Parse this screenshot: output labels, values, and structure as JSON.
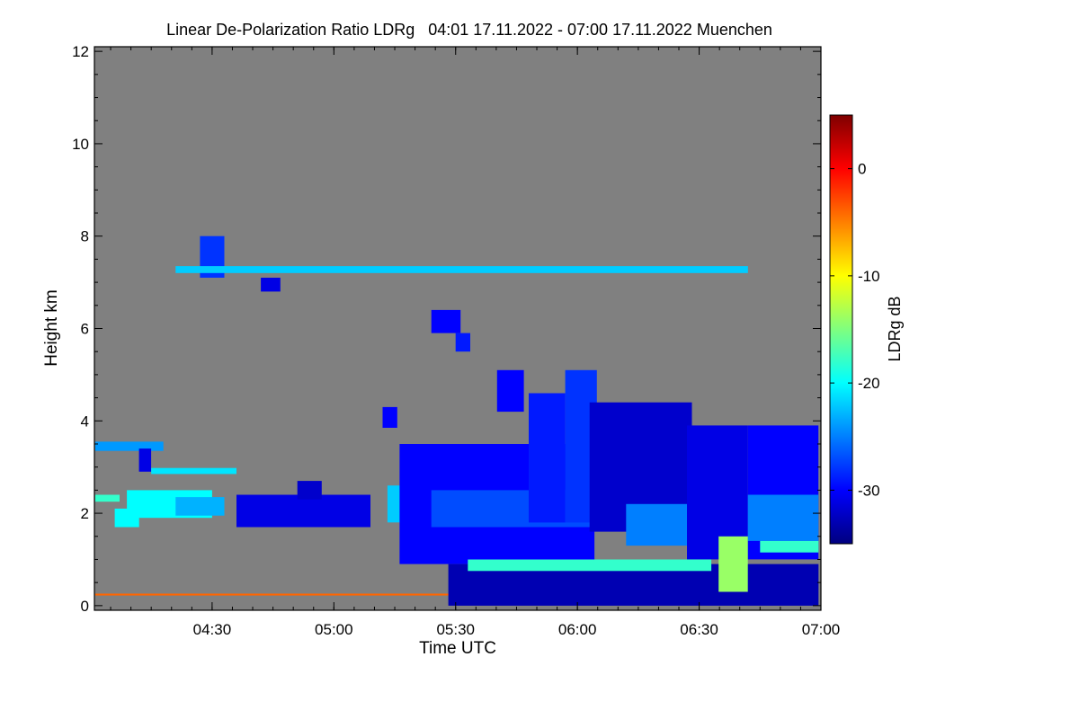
{
  "chart_data": {
    "type": "heatmap",
    "title": "Linear De-Polarization Ratio LDRg   04:01 17.11.2022 - 07:00 17.11.2022 Muenchen",
    "xlabel": "Time UTC",
    "ylabel": "Height km",
    "x_range_utc": [
      "04:01",
      "07:00"
    ],
    "xlim_hours": [
      4.0167,
      7.0
    ],
    "x_ticks": [
      {
        "label": "04:30",
        "value": 4.5
      },
      {
        "label": "05:00",
        "value": 5.0
      },
      {
        "label": "05:30",
        "value": 5.5
      },
      {
        "label": "06:00",
        "value": 6.0
      },
      {
        "label": "06:30",
        "value": 6.5
      },
      {
        "label": "07:00",
        "value": 7.0
      }
    ],
    "ylim": [
      -0.1,
      12.1
    ],
    "y_ticks": [
      0,
      2,
      4,
      6,
      8,
      10,
      12
    ],
    "colorbar": {
      "label": "LDRg dB",
      "range": [
        -35,
        5
      ],
      "ticks": [
        0,
        -10,
        -20,
        -30
      ],
      "colormap": [
        "#00007f",
        "#0000ff",
        "#007fff",
        "#00ffff",
        "#7fff7f",
        "#ffff00",
        "#ff7f00",
        "#ff0000",
        "#7f0000"
      ]
    },
    "no_data_color": "#808080",
    "regions": [
      {
        "t0": 4.02,
        "t1": 4.3,
        "h0": 3.35,
        "h1": 3.55,
        "ldr": -24
      },
      {
        "t0": 4.2,
        "t1": 4.25,
        "h0": 2.9,
        "h1": 3.4,
        "ldr": -31
      },
      {
        "t0": 4.25,
        "t1": 4.6,
        "h0": 2.85,
        "h1": 2.98,
        "ldr": -21
      },
      {
        "t0": 4.02,
        "t1": 4.12,
        "h0": 2.25,
        "h1": 2.4,
        "ldr": -18
      },
      {
        "t0": 4.1,
        "t1": 4.2,
        "h0": 1.7,
        "h1": 2.1,
        "ldr": -20
      },
      {
        "t0": 4.15,
        "t1": 4.5,
        "h0": 1.9,
        "h1": 2.5,
        "ldr": -20
      },
      {
        "t0": 4.35,
        "t1": 4.55,
        "h0": 1.95,
        "h1": 2.35,
        "ldr": -23
      },
      {
        "t0": 4.6,
        "t1": 5.15,
        "h0": 1.7,
        "h1": 2.4,
        "ldr": -31
      },
      {
        "t0": 4.85,
        "t1": 4.95,
        "h0": 2.3,
        "h1": 2.7,
        "ldr": -32
      },
      {
        "t0": 4.02,
        "t1": 5.52,
        "h0": 0.22,
        "h1": 0.26,
        "ldr": -4
      },
      {
        "t0": 4.45,
        "t1": 4.55,
        "h0": 7.1,
        "h1": 8.0,
        "ldr": -28
      },
      {
        "t0": 4.7,
        "t1": 4.78,
        "h0": 6.8,
        "h1": 7.1,
        "ldr": -31
      },
      {
        "t0": 4.35,
        "t1": 6.7,
        "h0": 7.2,
        "h1": 7.35,
        "ldr": -22
      },
      {
        "t0": 5.2,
        "t1": 5.26,
        "h0": 3.85,
        "h1": 4.3,
        "ldr": -30
      },
      {
        "t0": 5.4,
        "t1": 5.52,
        "h0": 5.9,
        "h1": 6.4,
        "ldr": -30
      },
      {
        "t0": 5.5,
        "t1": 5.56,
        "h0": 5.5,
        "h1": 5.9,
        "ldr": -29
      },
      {
        "t0": 5.22,
        "t1": 5.3,
        "h0": 1.8,
        "h1": 2.6,
        "ldr": -22
      },
      {
        "t0": 5.27,
        "t1": 6.07,
        "h0": 0.9,
        "h1": 3.5,
        "ldr": -30
      },
      {
        "t0": 5.4,
        "t1": 6.1,
        "h0": 1.7,
        "h1": 2.5,
        "ldr": -27
      },
      {
        "t0": 5.67,
        "t1": 5.78,
        "h0": 4.2,
        "h1": 5.1,
        "ldr": -30
      },
      {
        "t0": 5.8,
        "t1": 5.95,
        "h0": 1.8,
        "h1": 4.6,
        "ldr": -29
      },
      {
        "t0": 5.95,
        "t1": 6.08,
        "h0": 1.8,
        "h1": 5.1,
        "ldr": -28
      },
      {
        "t0": 6.05,
        "t1": 6.47,
        "h0": 1.6,
        "h1": 4.4,
        "ldr": -32
      },
      {
        "t0": 6.2,
        "t1": 6.45,
        "h0": 1.3,
        "h1": 2.2,
        "ldr": -25
      },
      {
        "t0": 6.45,
        "t1": 6.7,
        "h0": 1.0,
        "h1": 3.9,
        "ldr": -31
      },
      {
        "t0": 6.7,
        "t1": 6.99,
        "h0": 1.0,
        "h1": 3.9,
        "ldr": -30
      },
      {
        "t0": 6.7,
        "t1": 6.99,
        "h0": 1.4,
        "h1": 2.4,
        "ldr": -25
      },
      {
        "t0": 5.47,
        "t1": 6.99,
        "h0": 0.0,
        "h1": 0.9,
        "ldr": -33
      },
      {
        "t0": 5.55,
        "t1": 6.55,
        "h0": 0.75,
        "h1": 1.0,
        "ldr": -18
      },
      {
        "t0": 6.75,
        "t1": 6.99,
        "h0": 1.15,
        "h1": 1.4,
        "ldr": -18
      },
      {
        "t0": 6.58,
        "t1": 6.7,
        "h0": 0.3,
        "h1": 1.5,
        "ldr": -14
      }
    ]
  }
}
